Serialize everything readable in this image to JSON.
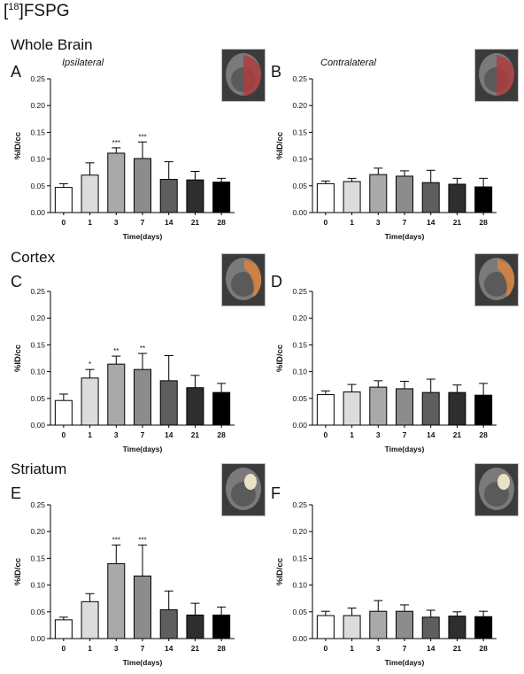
{
  "figure": {
    "title_main": "FSPG",
    "title_sup": "18",
    "title_left": "[",
    "title_right": "]",
    "sections": [
      "Whole Brain",
      "Cortex",
      "Striatum"
    ],
    "sides": {
      "ipsilateral": "Ipsilateral",
      "contralateral": "Contralateral"
    },
    "region_colors": {
      "whole_brain": "#b23a3a",
      "cortex": "#d9823f",
      "striatum": "#e8e2c6"
    }
  },
  "chart_data": [
    {
      "panel": "A",
      "type": "bar",
      "region": "Whole Brain",
      "side": "Ipsilateral",
      "categories": [
        "0",
        "1",
        "3",
        "7",
        "14",
        "21",
        "28"
      ],
      "values": [
        0.047,
        0.07,
        0.111,
        0.101,
        0.062,
        0.061,
        0.057
      ],
      "errors": [
        0.007,
        0.023,
        0.01,
        0.031,
        0.033,
        0.016,
        0.007
      ],
      "significance": [
        "",
        "",
        "***",
        "***",
        "",
        "",
        ""
      ],
      "xlabel": "Time(days)",
      "ylabel": "%ID/cc",
      "ylim": [
        0,
        0.25
      ],
      "yticks": [
        "0.00",
        "0.05",
        "0.10",
        "0.15",
        "0.20",
        "0.25"
      ]
    },
    {
      "panel": "B",
      "type": "bar",
      "region": "Whole Brain",
      "side": "Contralateral",
      "categories": [
        "0",
        "1",
        "3",
        "7",
        "14",
        "21",
        "28"
      ],
      "values": [
        0.054,
        0.058,
        0.071,
        0.068,
        0.056,
        0.053,
        0.048
      ],
      "errors": [
        0.005,
        0.006,
        0.012,
        0.01,
        0.023,
        0.011,
        0.016
      ],
      "significance": [
        "",
        "",
        "",
        "",
        "",
        "",
        ""
      ],
      "xlabel": "Time(days)",
      "ylabel": "%ID/cc",
      "ylim": [
        0,
        0.25
      ],
      "yticks": [
        "0.00",
        "0.05",
        "0.10",
        "0.15",
        "0.20",
        "0.25"
      ]
    },
    {
      "panel": "C",
      "type": "bar",
      "region": "Cortex",
      "side": "Ipsilateral",
      "categories": [
        "0",
        "1",
        "3",
        "7",
        "14",
        "21",
        "28"
      ],
      "values": [
        0.046,
        0.088,
        0.114,
        0.104,
        0.083,
        0.07,
        0.061
      ],
      "errors": [
        0.012,
        0.016,
        0.015,
        0.03,
        0.047,
        0.023,
        0.017
      ],
      "significance": [
        "",
        "*",
        "**",
        "**",
        "",
        "",
        ""
      ],
      "xlabel": "Time(days)",
      "ylabel": "%ID/cc",
      "ylim": [
        0,
        0.25
      ],
      "yticks": [
        "0.00",
        "0.05",
        "0.10",
        "0.15",
        "0.20",
        "0.25"
      ]
    },
    {
      "panel": "D",
      "type": "bar",
      "region": "Cortex",
      "side": "Contralateral",
      "categories": [
        "0",
        "1",
        "3",
        "7",
        "14",
        "21",
        "28"
      ],
      "values": [
        0.057,
        0.062,
        0.071,
        0.068,
        0.061,
        0.061,
        0.056
      ],
      "errors": [
        0.007,
        0.014,
        0.012,
        0.014,
        0.025,
        0.014,
        0.022
      ],
      "significance": [
        "",
        "",
        "",
        "",
        "",
        "",
        ""
      ],
      "xlabel": "Time(days)",
      "ylabel": "%ID/cc",
      "ylim": [
        0,
        0.25
      ],
      "yticks": [
        "0.00",
        "0.05",
        "0.10",
        "0.15",
        "0.20",
        "0.25"
      ]
    },
    {
      "panel": "E",
      "type": "bar",
      "region": "Striatum",
      "side": "Ipsilateral",
      "categories": [
        "0",
        "1",
        "3",
        "7",
        "14",
        "21",
        "28"
      ],
      "values": [
        0.035,
        0.069,
        0.14,
        0.117,
        0.054,
        0.044,
        0.044
      ],
      "errors": [
        0.005,
        0.015,
        0.035,
        0.058,
        0.035,
        0.022,
        0.015
      ],
      "significance": [
        "",
        "",
        "***",
        "***",
        "",
        "",
        ""
      ],
      "xlabel": "Time(days)",
      "ylabel": "%ID/cc",
      "ylim": [
        0,
        0.25
      ],
      "yticks": [
        "0.00",
        "0.05",
        "0.10",
        "0.15",
        "0.20",
        "0.25"
      ]
    },
    {
      "panel": "F",
      "type": "bar",
      "region": "Striatum",
      "side": "Contralateral",
      "categories": [
        "0",
        "1",
        "3",
        "7",
        "14",
        "21",
        "28"
      ],
      "values": [
        0.043,
        0.043,
        0.051,
        0.051,
        0.04,
        0.042,
        0.041
      ],
      "errors": [
        0.008,
        0.014,
        0.02,
        0.012,
        0.013,
        0.008,
        0.01
      ],
      "significance": [
        "",
        "",
        "",
        "",
        "",
        "",
        ""
      ],
      "xlabel": "Time(days)",
      "ylabel": "%ID/cc",
      "ylim": [
        0,
        0.25
      ],
      "yticks": [
        "0.00",
        "0.05",
        "0.10",
        "0.15",
        "0.20",
        "0.25"
      ]
    }
  ],
  "bar_colors": [
    "#ffffff",
    "#dcdcdc",
    "#a9a9a9",
    "#8c8c8c",
    "#5e5e5e",
    "#2e2e2e",
    "#000000"
  ]
}
